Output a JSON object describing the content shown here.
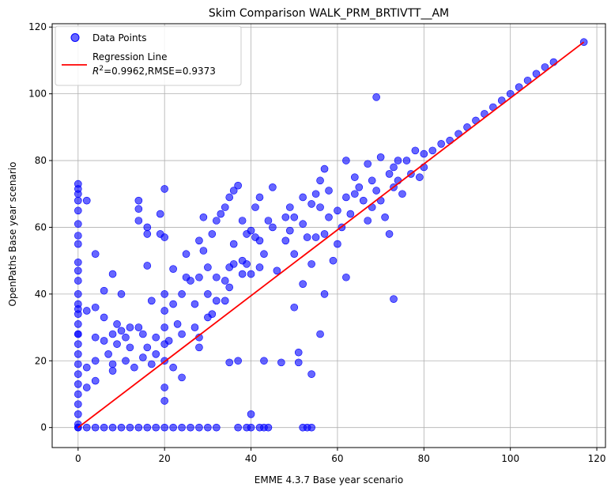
{
  "chart_data": {
    "type": "scatter",
    "title": "Skim Comparison WALK_PRM_BRTIVTT__AM",
    "xlabel": "EMME 4.3.7 Base year scenario",
    "ylabel": "OpenPaths Base year scenario",
    "xlim": [
      -6,
      122
    ],
    "ylim": [
      -6,
      121
    ],
    "xticks": [
      0,
      20,
      40,
      60,
      80,
      100,
      120
    ],
    "yticks": [
      0,
      20,
      40,
      60,
      80,
      100,
      120
    ],
    "grid": true,
    "legend_position": "top-left",
    "colors": {
      "points": "#0000ff",
      "regression": "#ff0000"
    },
    "series": [
      {
        "name": "Data Points",
        "kind": "scatter",
        "points": [
          [
            0,
            73
          ],
          [
            0,
            71.5
          ],
          [
            0,
            70
          ],
          [
            0,
            68
          ],
          [
            0,
            65
          ],
          [
            0,
            61
          ],
          [
            0,
            57.5
          ],
          [
            0,
            55
          ],
          [
            0,
            49.5
          ],
          [
            0,
            47
          ],
          [
            0,
            44
          ],
          [
            0,
            40
          ],
          [
            0,
            37
          ],
          [
            0,
            34
          ],
          [
            0,
            31
          ],
          [
            0,
            28
          ],
          [
            0,
            25
          ],
          [
            0,
            22
          ],
          [
            0,
            19
          ],
          [
            0,
            16
          ],
          [
            0,
            13
          ],
          [
            0,
            10
          ],
          [
            0,
            7
          ],
          [
            0,
            4
          ],
          [
            0,
            1
          ],
          [
            0,
            0
          ],
          [
            0,
            28
          ],
          [
            0,
            35.5
          ],
          [
            2,
            68
          ],
          [
            2,
            35
          ],
          [
            2,
            18
          ],
          [
            2,
            12
          ],
          [
            4,
            52
          ],
          [
            4,
            36
          ],
          [
            4,
            27
          ],
          [
            4,
            20
          ],
          [
            4,
            14
          ],
          [
            6,
            33
          ],
          [
            6,
            26
          ],
          [
            6,
            41
          ],
          [
            7,
            22
          ],
          [
            8,
            46
          ],
          [
            8,
            28
          ],
          [
            8,
            19
          ],
          [
            8,
            17
          ],
          [
            9,
            31
          ],
          [
            9,
            25
          ],
          [
            10,
            40
          ],
          [
            10,
            29
          ],
          [
            11,
            27
          ],
          [
            11,
            20
          ],
          [
            12,
            30
          ],
          [
            12,
            24
          ],
          [
            13,
            18
          ],
          [
            14,
            68
          ],
          [
            14,
            65.5
          ],
          [
            14,
            62
          ],
          [
            14,
            30
          ],
          [
            15,
            28
          ],
          [
            15,
            21
          ],
          [
            16,
            60
          ],
          [
            16,
            58
          ],
          [
            16,
            48.5
          ],
          [
            16,
            24
          ],
          [
            17,
            19
          ],
          [
            17,
            38
          ],
          [
            18,
            27
          ],
          [
            18,
            22
          ],
          [
            19,
            64
          ],
          [
            19,
            58
          ],
          [
            20,
            71.5
          ],
          [
            20,
            57
          ],
          [
            20,
            40
          ],
          [
            20,
            35
          ],
          [
            20,
            30
          ],
          [
            20,
            25
          ],
          [
            20,
            20
          ],
          [
            20,
            12
          ],
          [
            20,
            8
          ],
          [
            21,
            26
          ],
          [
            22,
            47.5
          ],
          [
            22,
            37
          ],
          [
            22,
            18
          ],
          [
            23,
            31
          ],
          [
            24,
            40
          ],
          [
            24,
            28
          ],
          [
            24,
            15
          ],
          [
            25,
            52
          ],
          [
            25,
            45
          ],
          [
            26,
            44
          ],
          [
            27,
            37
          ],
          [
            27,
            30
          ],
          [
            28,
            56
          ],
          [
            28,
            45
          ],
          [
            28,
            27
          ],
          [
            28,
            24
          ],
          [
            29,
            63
          ],
          [
            29,
            53
          ],
          [
            30,
            48
          ],
          [
            30,
            40
          ],
          [
            30,
            33
          ],
          [
            31,
            58
          ],
          [
            31,
            34
          ],
          [
            32,
            62
          ],
          [
            32,
            45
          ],
          [
            32,
            38
          ],
          [
            33,
            64
          ],
          [
            34,
            66
          ],
          [
            34,
            44
          ],
          [
            34,
            38
          ],
          [
            35,
            69
          ],
          [
            35,
            48
          ],
          [
            35,
            42
          ],
          [
            35,
            19.5
          ],
          [
            36,
            71
          ],
          [
            36,
            55
          ],
          [
            36,
            49
          ],
          [
            37,
            72.5
          ],
          [
            37,
            20
          ],
          [
            38,
            62
          ],
          [
            38,
            50
          ],
          [
            38,
            46
          ],
          [
            39,
            58
          ],
          [
            39,
            49
          ],
          [
            40,
            59
          ],
          [
            40,
            46
          ],
          [
            40,
            4
          ],
          [
            41,
            57
          ],
          [
            41,
            66
          ],
          [
            42,
            69
          ],
          [
            42,
            56
          ],
          [
            42,
            48
          ],
          [
            43,
            52
          ],
          [
            43,
            20
          ],
          [
            44,
            62
          ],
          [
            45,
            60
          ],
          [
            45,
            72
          ],
          [
            46,
            47
          ],
          [
            47,
            19.5
          ],
          [
            48,
            63
          ],
          [
            48,
            56
          ],
          [
            49,
            66
          ],
          [
            49,
            59
          ],
          [
            50,
            52
          ],
          [
            50,
            63
          ],
          [
            50,
            36
          ],
          [
            51,
            22.5
          ],
          [
            51,
            19.5
          ],
          [
            52,
            69
          ],
          [
            52,
            61
          ],
          [
            52,
            43
          ],
          [
            53,
            57
          ],
          [
            54,
            67
          ],
          [
            54,
            49
          ],
          [
            54,
            16
          ],
          [
            55,
            70
          ],
          [
            55,
            57
          ],
          [
            56,
            74
          ],
          [
            56,
            66
          ],
          [
            56,
            28
          ],
          [
            57,
            77.5
          ],
          [
            57,
            58
          ],
          [
            57,
            40
          ],
          [
            58,
            71
          ],
          [
            58,
            63
          ],
          [
            59,
            50
          ],
          [
            60,
            65
          ],
          [
            60,
            55
          ],
          [
            61,
            60
          ],
          [
            62,
            80
          ],
          [
            62,
            69
          ],
          [
            62,
            45
          ],
          [
            63,
            64
          ],
          [
            64,
            75
          ],
          [
            64,
            70
          ],
          [
            65,
            72
          ],
          [
            66,
            68
          ],
          [
            67,
            79
          ],
          [
            67,
            62
          ],
          [
            68,
            74
          ],
          [
            68,
            66
          ],
          [
            69,
            99
          ],
          [
            69,
            71
          ],
          [
            70,
            81
          ],
          [
            70,
            68
          ],
          [
            71,
            63
          ],
          [
            72,
            76
          ],
          [
            72,
            58
          ],
          [
            73,
            78
          ],
          [
            73,
            72
          ],
          [
            74,
            80
          ],
          [
            74,
            74
          ],
          [
            75,
            70
          ],
          [
            76,
            80
          ],
          [
            77,
            76
          ],
          [
            78,
            83
          ],
          [
            79,
            75
          ],
          [
            80,
            82
          ],
          [
            80,
            78
          ],
          [
            82,
            83
          ],
          [
            84,
            85
          ],
          [
            86,
            86
          ],
          [
            88,
            88
          ],
          [
            90,
            90
          ],
          [
            92,
            92
          ],
          [
            94,
            94
          ],
          [
            96,
            96
          ],
          [
            98,
            98
          ],
          [
            100,
            100
          ],
          [
            102,
            102
          ],
          [
            104,
            104
          ],
          [
            106,
            106
          ],
          [
            108,
            108
          ],
          [
            110,
            109.5
          ],
          [
            117,
            115.5
          ],
          [
            73,
            38.5
          ],
          [
            0,
            0
          ],
          [
            2,
            0
          ],
          [
            4,
            0
          ],
          [
            6,
            0
          ],
          [
            8,
            0
          ],
          [
            10,
            0
          ],
          [
            12,
            0
          ],
          [
            14,
            0
          ],
          [
            16,
            0
          ],
          [
            18,
            0
          ],
          [
            20,
            0
          ],
          [
            22,
            0
          ],
          [
            24,
            0
          ],
          [
            26,
            0
          ],
          [
            28,
            0
          ],
          [
            30,
            0
          ],
          [
            32,
            0
          ],
          [
            37,
            0
          ],
          [
            39,
            0
          ],
          [
            40,
            0
          ],
          [
            42,
            0
          ],
          [
            43,
            0
          ],
          [
            44,
            0
          ],
          [
            52,
            0
          ],
          [
            53,
            0
          ],
          [
            54,
            0
          ]
        ]
      },
      {
        "name": "Regression Line",
        "kind": "line",
        "x": [
          0,
          117
        ],
        "y": [
          0,
          115.5
        ],
        "label_line1": "Regression Line",
        "label_line2_prefix": "R",
        "label_line2_sup": "2",
        "label_line2_suffix": "=0.9962,RMSE=0.9373"
      }
    ]
  }
}
